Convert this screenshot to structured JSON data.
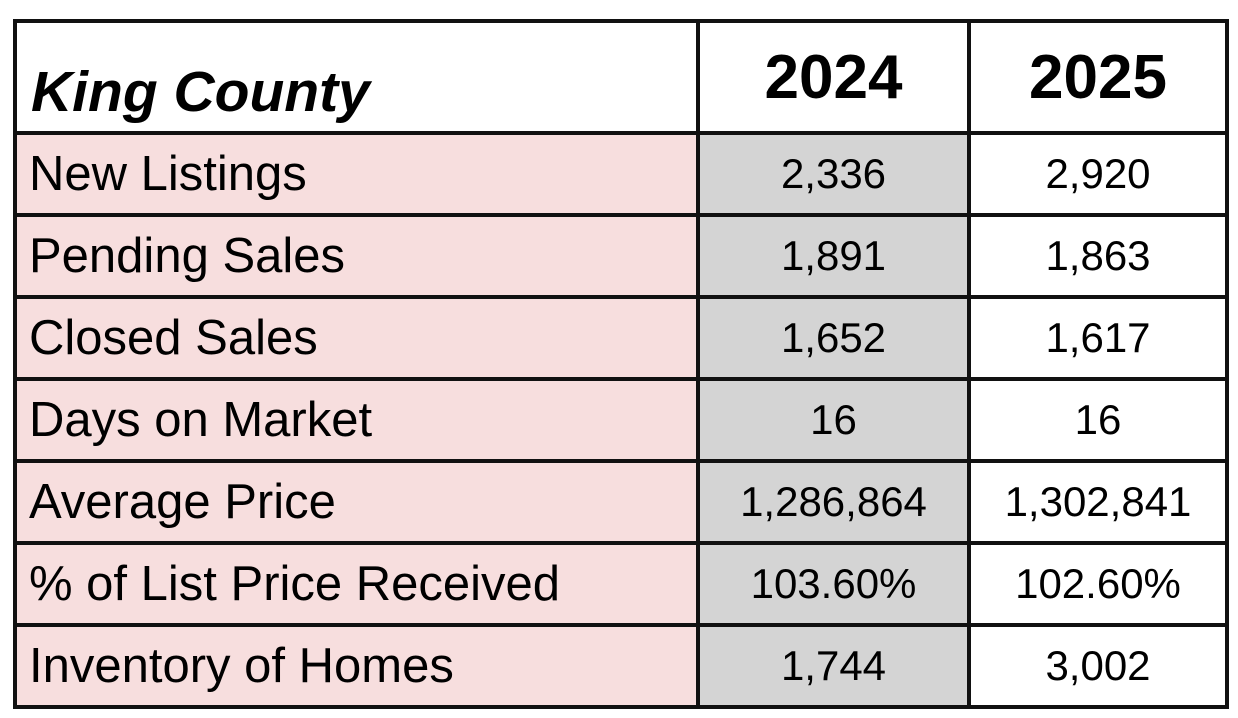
{
  "chart_data": {
    "type": "table",
    "title": "King County",
    "columns": [
      "2024",
      "2025"
    ],
    "rows": [
      {
        "label": "New Listings",
        "values": [
          "2,336",
          "2,920"
        ]
      },
      {
        "label": "Pending Sales",
        "values": [
          "1,891",
          "1,863"
        ]
      },
      {
        "label": "Closed Sales",
        "values": [
          "1,652",
          "1,617"
        ]
      },
      {
        "label": "Days on Market",
        "values": [
          "16",
          "16"
        ]
      },
      {
        "label": "Average Price",
        "values": [
          "1,286,864",
          "1,302,841"
        ]
      },
      {
        "label": "% of List Price Received",
        "values": [
          "103.60%",
          "102.60%"
        ]
      },
      {
        "label": "Inventory of Homes",
        "values": [
          "1,744",
          "3,002"
        ]
      }
    ]
  }
}
